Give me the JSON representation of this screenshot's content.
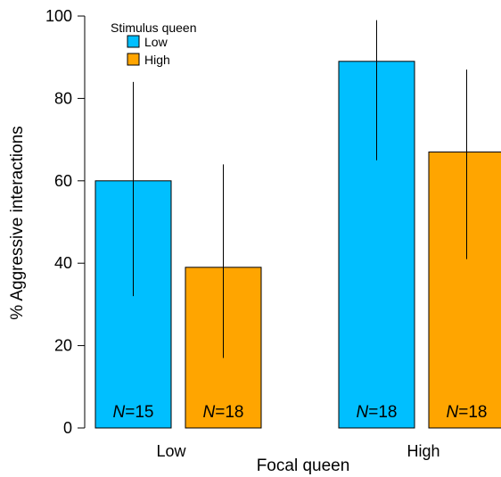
{
  "chart_data": {
    "type": "bar",
    "xlabel": "Focal queen",
    "ylabel": "% Aggressive interactions",
    "categories": [
      "Low",
      "High"
    ],
    "ylim": [
      0,
      100
    ],
    "yticks": [
      0,
      20,
      40,
      60,
      80,
      100
    ],
    "legend": {
      "title": "Stimulus queen",
      "position": "top-left"
    },
    "grid": false,
    "series": [
      {
        "name": "Low",
        "color": "#00bfff",
        "values": [
          60,
          89
        ],
        "error_low": [
          32,
          65
        ],
        "error_high": [
          84,
          99
        ],
        "n_labels": [
          {
            "italic": "N",
            "rest": "=15"
          },
          {
            "italic": "N",
            "rest": "=18"
          }
        ]
      },
      {
        "name": "High",
        "color": "#ffa500",
        "values": [
          39,
          67
        ],
        "error_low": [
          17,
          41
        ],
        "error_high": [
          64,
          87
        ],
        "n_labels": [
          {
            "italic": "N",
            "rest": "=18"
          },
          {
            "italic": "N",
            "rest": "=18"
          }
        ]
      }
    ]
  }
}
